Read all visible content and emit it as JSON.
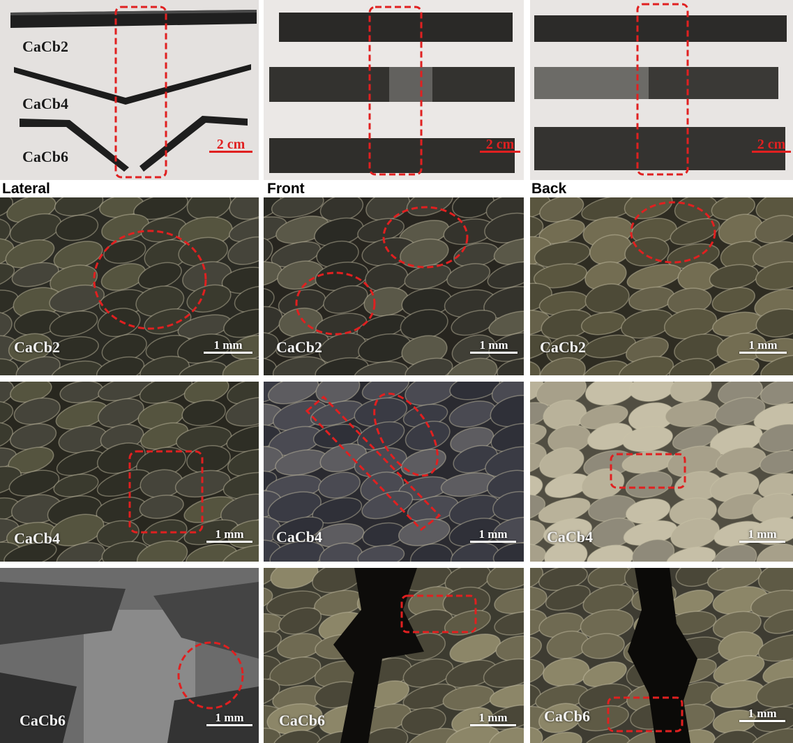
{
  "views": {
    "lateral": "Lateral",
    "front": "Front",
    "back": "Back"
  },
  "top_row": {
    "lateral_samples": [
      "CaCb2",
      "CaCb4",
      "CaCb6"
    ],
    "scale": "2 cm"
  },
  "micrographs": {
    "row1_sample": "CaCb2",
    "row2_sample": "CaCb4",
    "row3_sample": "CaCb6",
    "scale": "1 mm"
  },
  "colors": {
    "highlight": "#e02020",
    "scale_top": "#e02020",
    "scale_micro": "#ffffff"
  }
}
